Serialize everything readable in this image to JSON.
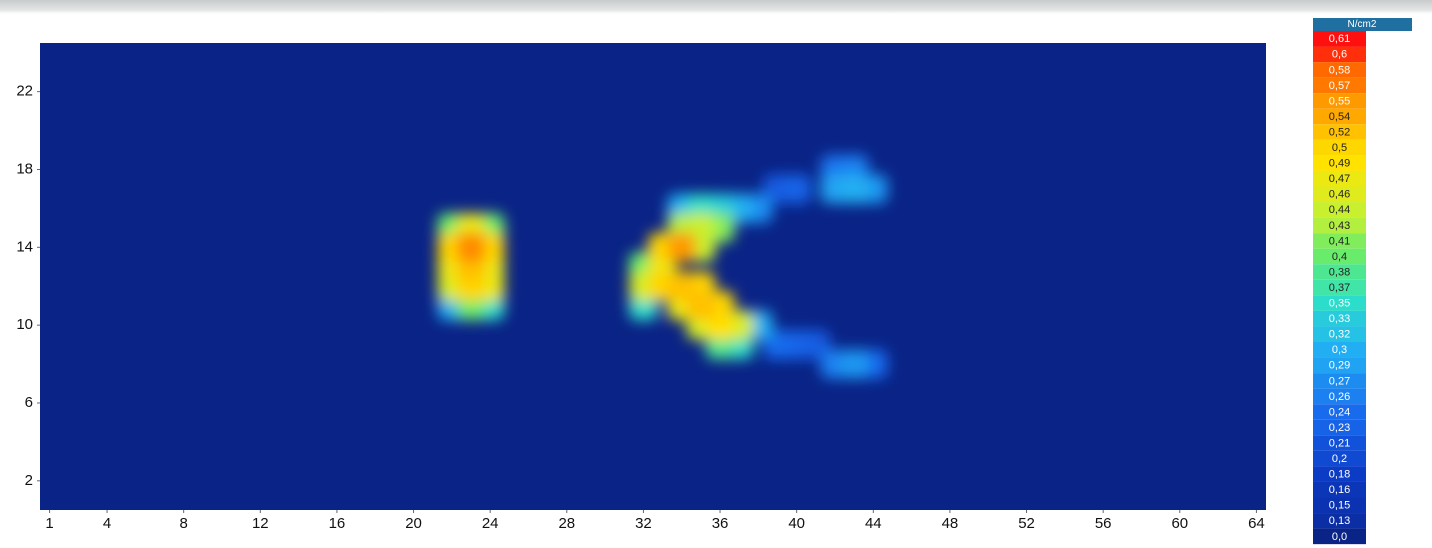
{
  "chart_data": {
    "type": "heatmap",
    "xlim": [
      0.5,
      64.5
    ],
    "ylim": [
      0.5,
      24.5
    ],
    "xticks": [
      1,
      4,
      8,
      12,
      16,
      20,
      24,
      28,
      32,
      36,
      40,
      44,
      48,
      52,
      56,
      60,
      64
    ],
    "yticks": [
      2,
      6,
      10,
      14,
      18,
      22
    ],
    "x": [
      22,
      23,
      24,
      22,
      23,
      24,
      22,
      23,
      24,
      22,
      23,
      24,
      22,
      23,
      24,
      32,
      32,
      32,
      33,
      34,
      33,
      33,
      34,
      35,
      35,
      34,
      36,
      36,
      37,
      35,
      37,
      36,
      34,
      35,
      35,
      36,
      36,
      37,
      35,
      34,
      38,
      39,
      40,
      42,
      43,
      44,
      42,
      43,
      38,
      39,
      40,
      41,
      42,
      43,
      44
    ],
    "y": [
      11,
      11,
      11,
      12,
      12,
      12,
      13,
      13,
      13,
      14,
      14,
      14,
      15,
      15,
      15,
      12,
      13,
      11,
      14,
      14,
      13,
      12,
      12,
      12,
      11,
      11,
      11,
      10,
      10,
      10,
      9,
      9,
      15,
      15,
      14,
      15,
      16,
      16,
      16,
      16,
      16,
      17,
      17,
      17,
      17,
      17,
      18,
      18,
      10,
      9,
      9,
      9,
      8,
      8,
      8
    ],
    "values": [
      0.3,
      0.4,
      0.35,
      0.45,
      0.5,
      0.47,
      0.47,
      0.52,
      0.47,
      0.5,
      0.56,
      0.5,
      0.4,
      0.47,
      0.4,
      0.45,
      0.4,
      0.35,
      0.5,
      0.55,
      0.47,
      0.5,
      0.52,
      0.5,
      0.52,
      0.47,
      0.5,
      0.49,
      0.45,
      0.45,
      0.35,
      0.38,
      0.43,
      0.44,
      0.44,
      0.41,
      0.33,
      0.3,
      0.35,
      0.3,
      0.27,
      0.22,
      0.23,
      0.29,
      0.3,
      0.28,
      0.25,
      0.26,
      0.3,
      0.24,
      0.23,
      0.22,
      0.26,
      0.28,
      0.24
    ],
    "colorbar": {
      "title": "N/cm2",
      "ticks": [
        {
          "value": 0.61,
          "label": "0,61"
        },
        {
          "value": 0.6,
          "label": "0,6"
        },
        {
          "value": 0.58,
          "label": "0,58"
        },
        {
          "value": 0.57,
          "label": "0,57"
        },
        {
          "value": 0.55,
          "label": "0,55"
        },
        {
          "value": 0.54,
          "label": "0,54"
        },
        {
          "value": 0.52,
          "label": "0,52"
        },
        {
          "value": 0.5,
          "label": "0,5"
        },
        {
          "value": 0.49,
          "label": "0,49"
        },
        {
          "value": 0.47,
          "label": "0,47"
        },
        {
          "value": 0.46,
          "label": "0,46"
        },
        {
          "value": 0.44,
          "label": "0,44"
        },
        {
          "value": 0.43,
          "label": "0,43"
        },
        {
          "value": 0.41,
          "label": "0,41"
        },
        {
          "value": 0.4,
          "label": "0,4"
        },
        {
          "value": 0.38,
          "label": "0,38"
        },
        {
          "value": 0.37,
          "label": "0,37"
        },
        {
          "value": 0.35,
          "label": "0,35"
        },
        {
          "value": 0.33,
          "label": "0,33"
        },
        {
          "value": 0.32,
          "label": "0,32"
        },
        {
          "value": 0.3,
          "label": "0,3"
        },
        {
          "value": 0.29,
          "label": "0,29"
        },
        {
          "value": 0.27,
          "label": "0,27"
        },
        {
          "value": 0.26,
          "label": "0,26"
        },
        {
          "value": 0.24,
          "label": "0,24"
        },
        {
          "value": 0.23,
          "label": "0,23"
        },
        {
          "value": 0.21,
          "label": "0,21"
        },
        {
          "value": 0.2,
          "label": "0,2"
        },
        {
          "value": 0.18,
          "label": "0,18"
        },
        {
          "value": 0.16,
          "label": "0,16"
        },
        {
          "value": 0.15,
          "label": "0,15"
        },
        {
          "value": 0.13,
          "label": "0,13"
        },
        {
          "value": 0.0,
          "label": "0,0"
        }
      ]
    }
  }
}
